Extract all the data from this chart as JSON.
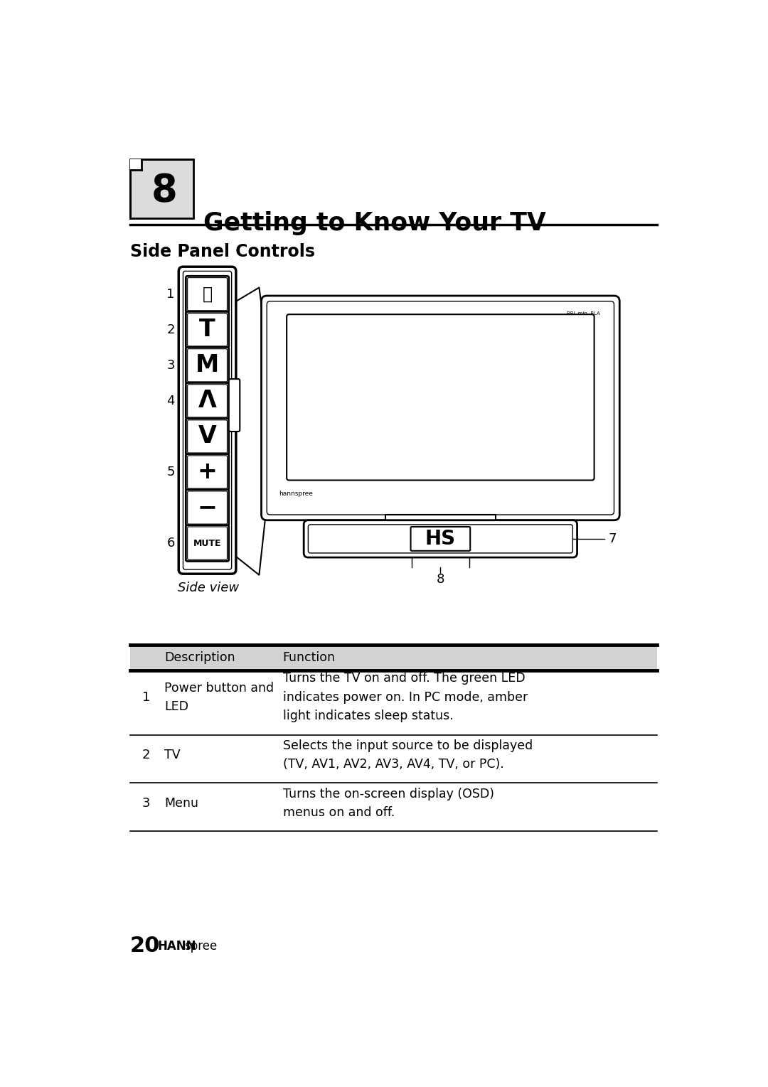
{
  "page_bg": "#ffffff",
  "chapter_num": "8",
  "chapter_box_color": "#dcdcdc",
  "chapter_box_border": "#000000",
  "chapter_title": "Getting to Know Your TV",
  "section_title": "Side Panel Controls",
  "side_view_label": "Side view",
  "label_7": "7",
  "label_8": "8",
  "button_labels": [
    "⏻",
    "T",
    "M",
    "Λ",
    "V",
    "+",
    "−",
    "MUTE"
  ],
  "num_labels": [
    "1",
    "2",
    "3",
    "4",
    "",
    "5",
    "",
    "6"
  ],
  "table_header_desc": "Description",
  "table_header_func": "Function",
  "table_rows": [
    {
      "num": "1",
      "desc": "Power button and\nLED",
      "func": "Turns the TV on and off. The green LED\nindicates power on. In PC mode, amber\nlight indicates sleep status."
    },
    {
      "num": "2",
      "desc": "TV",
      "func": "Selects the input source to be displayed\n(TV, AV1, AV2, AV3, AV4, TV, or PC)."
    },
    {
      "num": "3",
      "desc": "Menu",
      "func": "Turns the on-screen display (OSD)\nmenus on and off."
    }
  ],
  "footer_num": "20",
  "footer_brand_bold": "HANN",
  "footer_brand_normal": "spree"
}
